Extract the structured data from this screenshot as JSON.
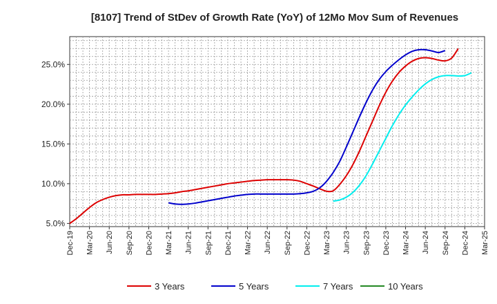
{
  "chart_data": {
    "type": "line",
    "title": "[8107]  Trend of StDev of Growth Rate (YoY) of 12Mo Mov Sum of Revenues",
    "xlabel": "",
    "ylabel": "",
    "x_ticks": [
      "Dec-19",
      "Mar-20",
      "Jun-20",
      "Sep-20",
      "Dec-20",
      "Mar-21",
      "Jun-21",
      "Sep-21",
      "Dec-21",
      "Mar-22",
      "Jun-22",
      "Sep-22",
      "Dec-22",
      "Mar-23",
      "Jun-23",
      "Sep-23",
      "Dec-23",
      "Mar-24",
      "Jun-24",
      "Sep-24",
      "Dec-24",
      "Mar-25"
    ],
    "y_ticks": [
      {
        "value": 5,
        "label": "5.0%"
      },
      {
        "value": 10,
        "label": "10.0%"
      },
      {
        "value": 15,
        "label": "15.0%"
      },
      {
        "value": 20,
        "label": "20.0%"
      },
      {
        "value": 25,
        "label": "25.0%"
      }
    ],
    "xlim": [
      0,
      63
    ],
    "ylim": [
      4.6,
      28.5
    ],
    "grid": true,
    "legend_position": "bottom",
    "series": [
      {
        "name": "3 Years",
        "color": "#dd0000",
        "start_index": 0,
        "values": [
          5.0,
          5.6,
          6.3,
          7.0,
          7.6,
          8.0,
          8.3,
          8.5,
          8.6,
          8.6,
          8.65,
          8.65,
          8.65,
          8.65,
          8.7,
          8.75,
          8.85,
          9.0,
          9.1,
          9.25,
          9.4,
          9.55,
          9.7,
          9.85,
          10.0,
          10.1,
          10.2,
          10.3,
          10.4,
          10.45,
          10.5,
          10.5,
          10.5,
          10.5,
          10.45,
          10.3,
          10.0,
          9.7,
          9.35,
          9.05,
          9.1,
          9.9,
          11.0,
          12.4,
          14.1,
          16.0,
          17.9,
          19.8,
          21.5,
          22.9,
          24.0,
          24.8,
          25.4,
          25.75,
          25.85,
          25.75,
          25.55,
          25.45,
          25.8,
          27.0
        ]
      },
      {
        "name": "5 Years",
        "color": "#0000cc",
        "start_index": 15,
        "values": [
          7.6,
          7.45,
          7.4,
          7.45,
          7.55,
          7.7,
          7.85,
          8.0,
          8.15,
          8.3,
          8.45,
          8.55,
          8.65,
          8.7,
          8.7,
          8.7,
          8.7,
          8.7,
          8.7,
          8.7,
          8.75,
          8.85,
          9.05,
          9.5,
          10.3,
          11.4,
          12.8,
          14.6,
          16.5,
          18.4,
          20.2,
          21.8,
          23.1,
          24.1,
          24.9,
          25.6,
          26.2,
          26.65,
          26.85,
          26.85,
          26.7,
          26.5,
          26.75
        ]
      },
      {
        "name": "7 Years",
        "color": "#00eeee",
        "start_index": 40,
        "values": [
          7.8,
          7.95,
          8.3,
          8.9,
          9.8,
          11.0,
          12.5,
          14.1,
          15.7,
          17.3,
          18.7,
          19.9,
          20.9,
          21.8,
          22.55,
          23.1,
          23.45,
          23.6,
          23.6,
          23.55,
          23.6,
          23.95
        ]
      },
      {
        "name": "10 Years",
        "color": "#228822",
        "start_index": 0,
        "values": []
      }
    ]
  }
}
